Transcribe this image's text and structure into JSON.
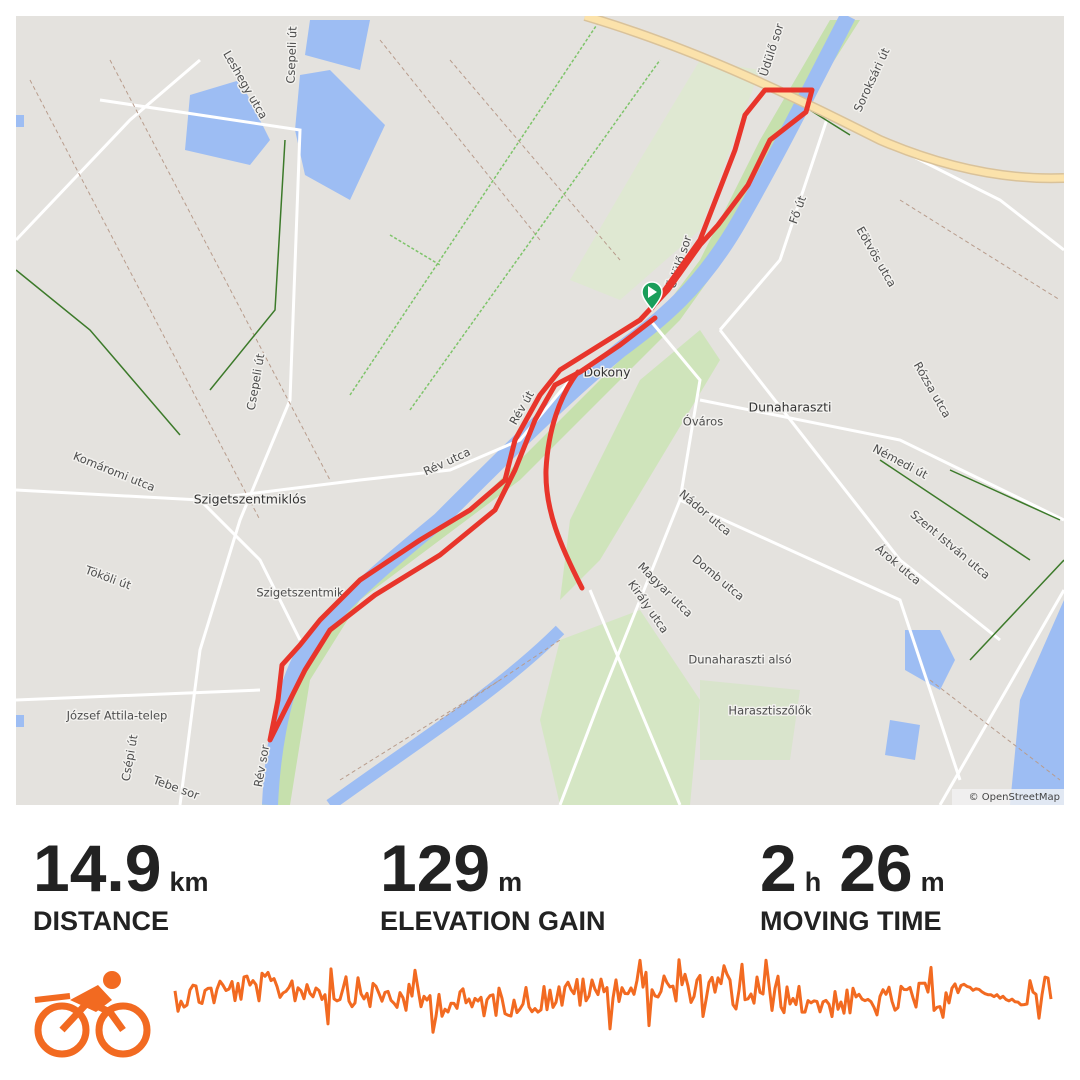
{
  "map": {
    "labels": [
      "Üdülő sor",
      "Soroksári út",
      "Leshegy utca",
      "Csepeli út",
      "Fő út",
      "Eötvös utca",
      "Üdülő sor",
      "Csepeli út",
      "Rév út",
      "Dokony",
      "Rózsa utca",
      "Dunaharaszti",
      "Óváros",
      "Némedi út",
      "Komáromi utca",
      "Rév utca",
      "Szigetszentmiklós",
      "Nádor utca",
      "Szent István utca",
      "Árok utca",
      "Tököli út",
      "Domb utca",
      "Szigetszentmik",
      "Magyar utca",
      "Király utca",
      "Dunaharaszti alsó",
      "Harasztiszőlők",
      "József Attila-telep",
      "Csépi út",
      "Rév sor",
      "Tebe sor"
    ],
    "attribution": "© OpenStreetMap"
  },
  "stats": {
    "distance": {
      "value": 14.9,
      "unit": "km",
      "label": "DISTANCE"
    },
    "elevation_gain": {
      "value": 129,
      "unit": "m",
      "label": "ELEVATION GAIN"
    },
    "moving_time": {
      "hours": 2,
      "hours_unit": "h",
      "minutes": 26,
      "minutes_unit": "m",
      "label": "MOVING TIME"
    }
  }
}
